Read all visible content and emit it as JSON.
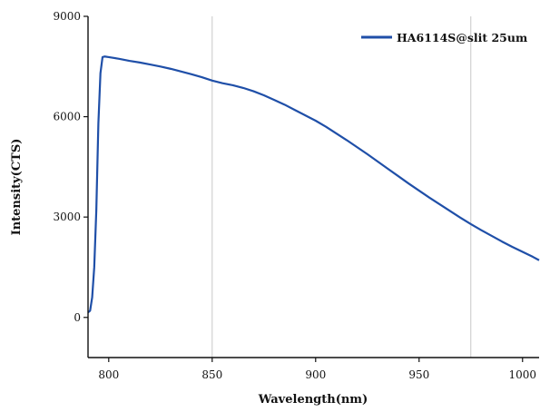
{
  "chart_data": {
    "type": "line",
    "title": "",
    "xlabel": "Wavelength(nm)",
    "ylabel": "Intensity(CTS)",
    "xlim": [
      790,
      1008
    ],
    "ylim": [
      -1200,
      9000
    ],
    "x_ticks": [
      800,
      850,
      900,
      950,
      1000
    ],
    "x_tick_labels": [
      "800",
      "850",
      "900",
      "950",
      "1000"
    ],
    "y_ticks": [
      0,
      3000,
      6000,
      9000
    ],
    "y_tick_labels": [
      "0",
      "3000",
      "6000",
      "9000"
    ],
    "grid": {
      "x_lines_at": [
        850,
        975
      ],
      "color": "#c8c8c8"
    },
    "legend_position": "top-right",
    "series": [
      {
        "name": "HA6114S@slit 25um",
        "color": "#1f4fa8",
        "points": [
          [
            790,
            150
          ],
          [
            791,
            200
          ],
          [
            792,
            600
          ],
          [
            793,
            1500
          ],
          [
            794,
            3200
          ],
          [
            795,
            5800
          ],
          [
            796,
            7300
          ],
          [
            797,
            7780
          ],
          [
            798,
            7800
          ],
          [
            800,
            7780
          ],
          [
            805,
            7730
          ],
          [
            810,
            7670
          ],
          [
            815,
            7620
          ],
          [
            820,
            7560
          ],
          [
            825,
            7500
          ],
          [
            830,
            7430
          ],
          [
            835,
            7350
          ],
          [
            840,
            7270
          ],
          [
            845,
            7180
          ],
          [
            850,
            7080
          ],
          [
            855,
            7000
          ],
          [
            860,
            6940
          ],
          [
            865,
            6860
          ],
          [
            870,
            6760
          ],
          [
            875,
            6640
          ],
          [
            880,
            6500
          ],
          [
            885,
            6360
          ],
          [
            890,
            6200
          ],
          [
            895,
            6040
          ],
          [
            900,
            5880
          ],
          [
            905,
            5700
          ],
          [
            910,
            5500
          ],
          [
            915,
            5300
          ],
          [
            920,
            5090
          ],
          [
            925,
            4880
          ],
          [
            930,
            4660
          ],
          [
            935,
            4440
          ],
          [
            940,
            4220
          ],
          [
            945,
            4000
          ],
          [
            950,
            3790
          ],
          [
            955,
            3580
          ],
          [
            960,
            3380
          ],
          [
            965,
            3180
          ],
          [
            970,
            2980
          ],
          [
            975,
            2790
          ],
          [
            980,
            2610
          ],
          [
            985,
            2440
          ],
          [
            990,
            2270
          ],
          [
            995,
            2110
          ],
          [
            1000,
            1960
          ],
          [
            1005,
            1810
          ],
          [
            1008,
            1710
          ]
        ]
      }
    ]
  }
}
